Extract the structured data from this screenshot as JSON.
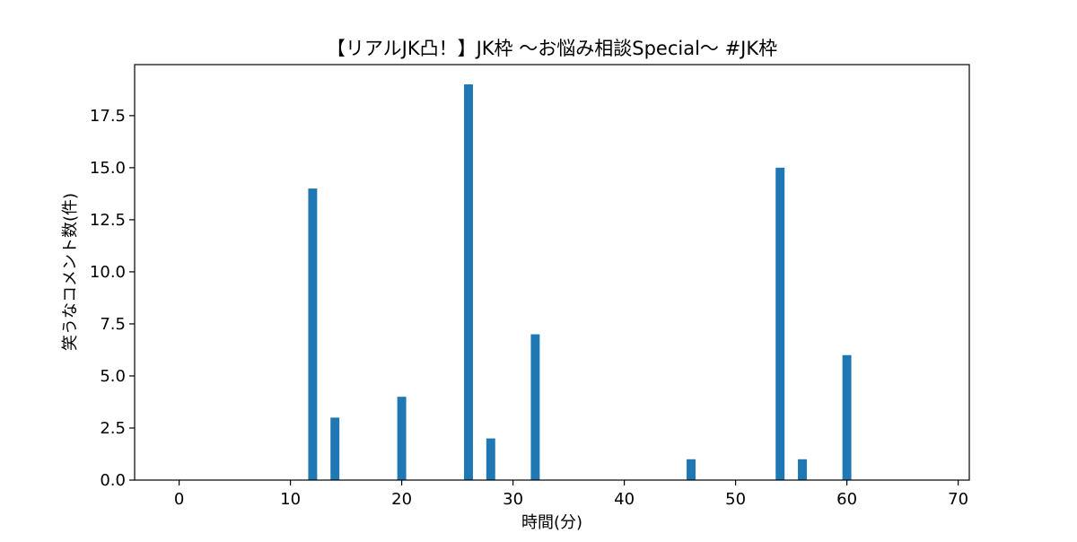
{
  "chart_data": {
    "type": "bar",
    "title": "【リアルJK凸！】JK枠 〜お悩み相談Special〜 #JK枠",
    "xlabel": "時間(分)",
    "ylabel": "笑うなコメント数(件)",
    "x": [
      12,
      14,
      20,
      26,
      28,
      32,
      46,
      54,
      56,
      60
    ],
    "values": [
      14,
      3,
      4,
      19,
      2,
      7,
      1,
      15,
      1,
      6
    ],
    "xlim": [
      -4,
      71
    ],
    "ylim": [
      0,
      19.95
    ],
    "xticks": [
      0,
      10,
      20,
      30,
      40,
      50,
      60,
      70
    ],
    "xtick_labels": [
      "0",
      "10",
      "20",
      "30",
      "40",
      "50",
      "60",
      "70"
    ],
    "yticks": [
      0,
      2.5,
      5,
      7.5,
      10,
      12.5,
      15,
      17.5
    ],
    "ytick_labels": [
      "0.0",
      "2.5",
      "5.0",
      "7.5",
      "10.0",
      "12.5",
      "15.0",
      "17.5"
    ],
    "bar_color": "#1f77b4",
    "grid": false,
    "legend": "none"
  }
}
